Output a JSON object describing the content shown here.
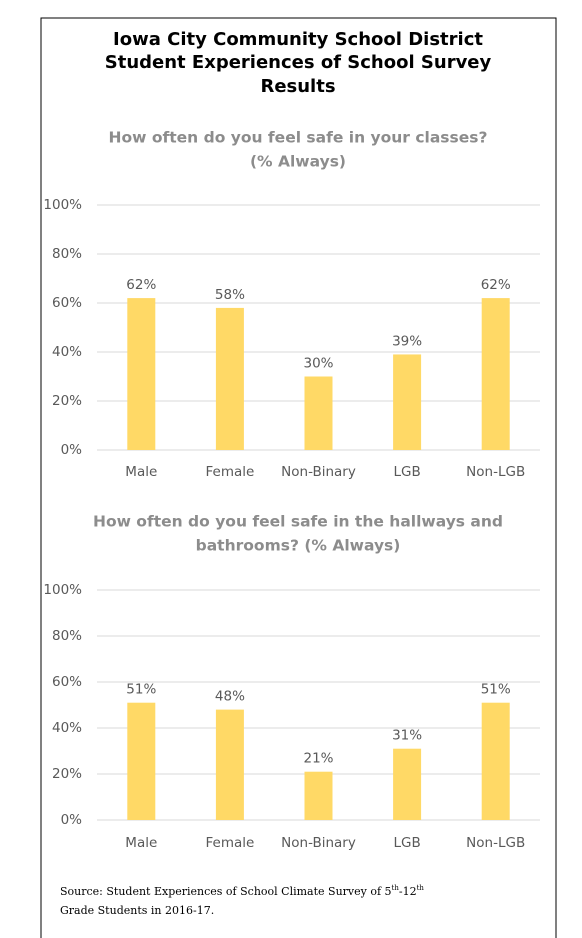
{
  "header": {
    "title": [
      "Iowa City Community School District",
      "Student Experiences of School Survey",
      "Results"
    ]
  },
  "chart_data": [
    {
      "type": "bar",
      "title": [
        "How often do you feel safe in your classes?",
        "(% Always)"
      ],
      "categories": [
        "Male",
        "Female",
        "Non-Binary",
        "LGB",
        "Non-LGB"
      ],
      "values": [
        62,
        58,
        30,
        39,
        62
      ],
      "value_labels": [
        "62%",
        "58%",
        "30%",
        "39%",
        "62%"
      ],
      "color": "#ffd966",
      "ylim": [
        0,
        100
      ],
      "yticks": [
        {
          "value": 0,
          "label": "0%"
        },
        {
          "value": 20,
          "label": "20%"
        },
        {
          "value": 40,
          "label": "40%"
        },
        {
          "value": 60,
          "label": "60%"
        },
        {
          "value": 80,
          "label": "80%"
        },
        {
          "value": 100,
          "label": "100%"
        }
      ],
      "grid": true
    },
    {
      "type": "bar",
      "title": [
        "How often do you feel safe in the hallways and",
        "bathrooms? (% Always)"
      ],
      "categories": [
        "Male",
        "Female",
        "Non-Binary",
        "LGB",
        "Non-LGB"
      ],
      "values": [
        51,
        48,
        21,
        31,
        51
      ],
      "value_labels": [
        "51%",
        "48%",
        "21%",
        "31%",
        "51%"
      ],
      "color": "#ffd966",
      "ylim": [
        0,
        100
      ],
      "yticks": [
        {
          "value": 0,
          "label": "0%"
        },
        {
          "value": 20,
          "label": "20%"
        },
        {
          "value": 40,
          "label": "40%"
        },
        {
          "value": 60,
          "label": "60%"
        },
        {
          "value": 80,
          "label": "80%"
        },
        {
          "value": 100,
          "label": "100%"
        }
      ],
      "grid": true
    }
  ],
  "source": [
    "Source: Student Experiences of School Climate Survey of 5",
    "th",
    "-12",
    "th",
    "Grade Students in 2016-17."
  ]
}
